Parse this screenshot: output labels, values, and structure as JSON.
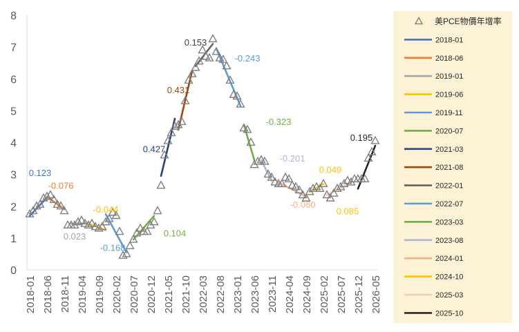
{
  "chart_data": {
    "type": "scatter",
    "ylim": [
      0,
      8
    ],
    "yticks": [
      "0",
      "1",
      "2",
      "3",
      "4",
      "5",
      "6",
      "7",
      "8"
    ],
    "xtick_labels": [
      "2018-01",
      "2018-06",
      "2018-11",
      "2019-04",
      "2019-09",
      "2020-02",
      "2020-07",
      "2020-12",
      "2021-05",
      "2021-10",
      "2022-03",
      "2022-08",
      "2023-01",
      "2023-06",
      "2023-11",
      "2024-04",
      "2024-09",
      "2025-02",
      "2025-07",
      "2025-12",
      "2026-05"
    ],
    "grid": false,
    "legend_position": "right",
    "scatter_series": {
      "name": "美PCE物價年增率",
      "marker": "triangle-hollow",
      "color": "#7f7f7f",
      "points": [
        [
          "2018-01",
          1.75
        ],
        [
          "2018-02",
          1.85
        ],
        [
          "2018-03",
          2.0
        ],
        [
          "2018-04",
          2.05
        ],
        [
          "2018-05",
          2.25
        ],
        [
          "2018-06",
          2.3
        ],
        [
          "2018-07",
          2.35
        ],
        [
          "2018-08",
          2.2
        ],
        [
          "2018-09",
          2.05
        ],
        [
          "2018-10",
          2.0
        ],
        [
          "2018-11",
          1.85
        ],
        [
          "2018-12",
          1.4
        ],
        [
          "2019-01",
          1.4
        ],
        [
          "2019-02",
          1.4
        ],
        [
          "2019-03",
          1.5
        ],
        [
          "2019-04",
          1.55
        ],
        [
          "2019-05",
          1.45
        ],
        [
          "2019-06",
          1.4
        ],
        [
          "2019-07",
          1.45
        ],
        [
          "2019-08",
          1.35
        ],
        [
          "2019-09",
          1.3
        ],
        [
          "2019-10",
          1.35
        ],
        [
          "2019-11",
          1.5
        ],
        [
          "2019-12",
          1.6
        ],
        [
          "2020-01",
          1.8
        ],
        [
          "2020-02",
          1.7
        ],
        [
          "2020-03",
          1.2
        ],
        [
          "2020-04",
          0.45
        ],
        [
          "2020-05",
          0.5
        ],
        [
          "2020-06",
          0.75
        ],
        [
          "2020-07",
          0.95
        ],
        [
          "2020-08",
          1.15
        ],
        [
          "2020-09",
          1.3
        ],
        [
          "2020-10",
          1.2
        ],
        [
          "2020-11",
          1.2
        ],
        [
          "2020-12",
          1.4
        ],
        [
          "2021-01",
          1.5
        ],
        [
          "2021-02",
          1.85
        ],
        [
          "2021-03",
          2.65
        ],
        [
          "2021-04",
          3.6
        ],
        [
          "2021-05",
          4.05
        ],
        [
          "2021-06",
          4.3
        ],
        [
          "2021-07",
          4.5
        ],
        [
          "2021-08",
          4.55
        ],
        [
          "2021-09",
          4.65
        ],
        [
          "2021-10",
          5.3
        ],
        [
          "2021-11",
          5.95
        ],
        [
          "2021-12",
          6.15
        ],
        [
          "2022-01",
          6.35
        ],
        [
          "2022-02",
          6.55
        ],
        [
          "2022-03",
          6.9
        ],
        [
          "2022-04",
          6.7
        ],
        [
          "2022-05",
          6.65
        ],
        [
          "2022-06",
          7.25
        ],
        [
          "2022-07",
          6.85
        ],
        [
          "2022-08",
          6.65
        ],
        [
          "2022-09",
          6.6
        ],
        [
          "2022-10",
          6.4
        ],
        [
          "2022-11",
          5.95
        ],
        [
          "2022-12",
          5.5
        ],
        [
          "2023-01",
          5.45
        ],
        [
          "2023-02",
          5.2
        ],
        [
          "2023-03",
          4.45
        ],
        [
          "2023-04",
          4.4
        ],
        [
          "2023-05",
          4.0
        ],
        [
          "2023-06",
          3.3
        ],
        [
          "2023-07",
          3.4
        ],
        [
          "2023-08",
          3.45
        ],
        [
          "2023-09",
          3.4
        ],
        [
          "2023-10",
          3.0
        ],
        [
          "2023-11",
          2.9
        ],
        [
          "2023-12",
          2.75
        ],
        [
          "2024-01",
          2.7
        ],
        [
          "2024-02",
          2.7
        ],
        [
          "2024-03",
          2.9
        ],
        [
          "2024-04",
          2.85
        ],
        [
          "2024-05",
          2.65
        ],
        [
          "2024-06",
          2.6
        ],
        [
          "2024-07",
          2.5
        ],
        [
          "2024-08",
          2.35
        ],
        [
          "2024-09",
          2.25
        ],
        [
          "2024-10",
          2.45
        ],
        [
          "2024-11",
          2.55
        ],
        [
          "2024-12",
          2.6
        ],
        [
          "2025-01",
          2.55
        ],
        [
          "2025-02",
          2.7
        ],
        [
          "2025-03",
          2.35
        ],
        [
          "2025-04",
          2.25
        ],
        [
          "2025-05",
          2.4
        ],
        [
          "2025-06",
          2.55
        ],
        [
          "2025-07",
          2.6
        ],
        [
          "2025-08",
          2.7
        ],
        [
          "2025-09",
          2.8
        ],
        [
          "2025-10",
          2.75
        ],
        [
          "2025-11",
          2.85
        ],
        [
          "2025-12",
          2.85
        ],
        [
          "2026-01",
          2.85
        ],
        [
          "2026-02",
          2.85
        ],
        [
          "2026-03",
          3.5
        ],
        [
          "2026-04",
          3.7
        ],
        [
          "2026-05",
          4.05
        ]
      ]
    },
    "trend_series": [
      {
        "name": "2018-01",
        "color": "#4472c4",
        "start": "2018-01",
        "end": "2018-06",
        "y0": 1.7,
        "y1": 2.27,
        "slope_label": "0.123",
        "label_color": "#4472c4",
        "label_x": "2018-04",
        "label_y": 2.95
      },
      {
        "name": "2018-06",
        "color": "#ed7d31",
        "start": "2018-06",
        "end": "2018-11",
        "y0": 2.3,
        "y1": 1.9,
        "slope_label": "-0.076",
        "label_color": "#ed7d31",
        "label_x": "2018-10",
        "label_y": 2.55
      },
      {
        "name": "2019-01",
        "color": "#a5a5a5",
        "start": "2019-01",
        "end": "2019-06",
        "y0": 1.45,
        "y1": 1.45,
        "slope_label": "0.023",
        "label_color": "#a5a5a5",
        "label_x": "2019-02",
        "label_y": 0.95
      },
      {
        "name": "2019-06",
        "color": "#ffc000",
        "start": "2019-06",
        "end": "2019-11",
        "y0": 1.45,
        "y1": 1.25,
        "slope_label": "-0.044",
        "label_color": "#ffc000",
        "label_x": "2019-11",
        "label_y": 1.8
      },
      {
        "name": "2019-11",
        "color": "#5b9bd5",
        "start": "2019-11",
        "end": "2020-05",
        "y0": 1.75,
        "y1": 0.55,
        "slope_label": "-0.168",
        "label_color": "#5b9bd5",
        "label_x": "2020-01",
        "label_y": 0.6
      },
      {
        "name": "2020-07",
        "color": "#70ad47",
        "start": "2020-07",
        "end": "2021-01",
        "y0": 0.95,
        "y1": 1.7,
        "slope_label": "0.104",
        "label_color": "#70ad47",
        "label_x": "2021-07",
        "label_y": 1.05
      },
      {
        "name": "2021-03",
        "color": "#264478",
        "start": "2021-03",
        "end": "2021-07",
        "y0": 2.95,
        "y1": 4.75,
        "slope_label": "0.427",
        "label_color": "#264478",
        "label_x": "2021-01",
        "label_y": 3.7
      },
      {
        "name": "2021-08",
        "color": "#9e480e",
        "start": "2021-08",
        "end": "2021-12",
        "y0": 4.4,
        "y1": 6.25,
        "slope_label": "0.431",
        "label_color": "#9e480e",
        "label_x": "2021-08",
        "label_y": 5.55
      },
      {
        "name": "2022-01",
        "color": "#636363",
        "start": "2022-01",
        "end": "2022-06",
        "y0": 6.4,
        "y1": 7.1,
        "slope_label": "0.153",
        "label_color": "#404040",
        "label_x": "2022-01",
        "label_y": 7.05
      },
      {
        "name": "2022-07",
        "color": "#5b9bd5",
        "start": "2022-07",
        "end": "2023-02",
        "y0": 6.95,
        "y1": 5.15,
        "slope_label": "-0.243",
        "label_color": "#5b9bd5",
        "label_x": "2023-04",
        "label_y": 6.55
      },
      {
        "name": "2023-03",
        "color": "#70ad47",
        "start": "2023-03",
        "end": "2023-06",
        "y0": 4.55,
        "y1": 3.45,
        "slope_label": "-0.323",
        "label_color": "#70ad47",
        "label_x": "2024-01",
        "label_y": 4.55
      },
      {
        "name": "2023-08",
        "color": "#a9b7d9",
        "start": "2023-08",
        "end": "2023-11",
        "y0": 3.45,
        "y1": 2.8,
        "slope_label": "-0.201",
        "label_color": "#a9b7d9",
        "label_x": "2024-05",
        "label_y": 3.4
      },
      {
        "name": "2024-01",
        "color": "#f4b183",
        "start": "2024-01",
        "end": "2024-09",
        "y0": 2.75,
        "y1": 2.3,
        "slope_label": "-0.060",
        "label_color": "#f4b183",
        "label_x": "2024-08",
        "label_y": 1.95
      },
      {
        "name": "2024-10",
        "color": "#ffc000",
        "start": "2024-10",
        "end": "2025-02",
        "y0": 2.45,
        "y1": 2.7,
        "slope_label": "0.049",
        "label_color": "#ffc000",
        "label_x": "2025-04",
        "label_y": 3.05
      },
      {
        "name": "2025-03",
        "color": "#f8cbad",
        "start": "2025-03",
        "end": "2025-10",
        "y0": 2.35,
        "y1": 2.75,
        "slope_label": "0.085",
        "label_color": "#ffc000",
        "label_x": "2025-09",
        "label_y": 1.75
      },
      {
        "name": "2025-10",
        "color": "#262626",
        "start": "2025-12",
        "end": "2026-05",
        "y0": 2.55,
        "y1": 3.9,
        "slope_label": "0.195",
        "label_color": "#262626",
        "label_x": "2026-01",
        "label_y": 4.05
      }
    ]
  }
}
